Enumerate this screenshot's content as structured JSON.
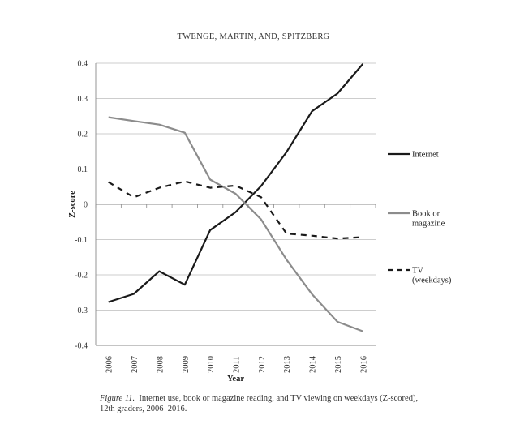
{
  "header": "TWENGE, MARTIN, AND, SPITZBERG",
  "caption": {
    "label": "Figure 11.",
    "text": "Internet use, book or magazine reading, and TV viewing on weekdays (Z-scored), 12th graders, 2006–2016."
  },
  "chart_data": {
    "type": "line",
    "title": "",
    "xlabel": "Year",
    "ylabel": "Z-score",
    "ylim": [
      -0.4,
      0.4
    ],
    "yticks": [
      -0.4,
      -0.3,
      -0.2,
      -0.1,
      0,
      0.1,
      0.2,
      0.3,
      0.4
    ],
    "ytick_labels": [
      "-0.4",
      "-0.3",
      "-0.2",
      "-0.1",
      "0",
      "0.1",
      "0.2",
      "0.3",
      "0.4"
    ],
    "categories": [
      "2006",
      "2007",
      "2008",
      "2009",
      "2010",
      "2011",
      "2012",
      "2013",
      "2014",
      "2015",
      "2016"
    ],
    "grid": true,
    "legend_position": "right",
    "series": [
      {
        "name": "Internet",
        "legend_lines": [
          "Internet"
        ],
        "color": "#1a1a1a",
        "style": "solid",
        "values": [
          -0.277,
          -0.254,
          -0.19,
          -0.228,
          -0.073,
          -0.022,
          0.052,
          0.148,
          0.264,
          0.314,
          0.398
        ]
      },
      {
        "name": "Book or magazine",
        "legend_lines": [
          "Book or",
          "magazine"
        ],
        "color": "#8c8c8c",
        "style": "solid",
        "values": [
          0.247,
          0.236,
          0.226,
          0.203,
          0.07,
          0.03,
          -0.043,
          -0.157,
          -0.255,
          -0.333,
          -0.36
        ]
      },
      {
        "name": "TV (weekdays)",
        "legend_lines": [
          "TV",
          "(weekdays)"
        ],
        "color": "#1a1a1a",
        "style": "dashed",
        "values": [
          0.063,
          0.02,
          0.047,
          0.065,
          0.047,
          0.053,
          0.02,
          -0.083,
          -0.089,
          -0.097,
          -0.093
        ]
      }
    ]
  }
}
